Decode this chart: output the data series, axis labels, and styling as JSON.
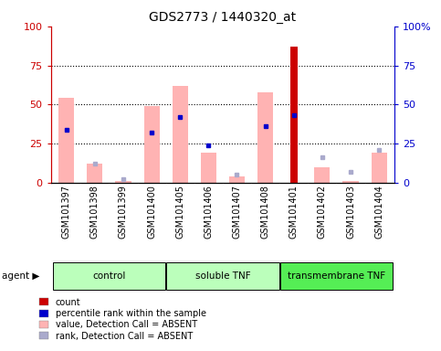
{
  "title": "GDS2773 / 1440320_at",
  "samples": [
    "GSM101397",
    "GSM101398",
    "GSM101399",
    "GSM101400",
    "GSM101405",
    "GSM101406",
    "GSM101407",
    "GSM101408",
    "GSM101401",
    "GSM101402",
    "GSM101403",
    "GSM101404"
  ],
  "pink_bar_values": [
    54,
    12,
    1,
    49,
    62,
    19,
    4,
    58,
    0,
    10,
    1,
    19
  ],
  "red_bar_values": [
    0,
    0,
    0,
    0,
    0,
    0,
    0,
    0,
    87,
    0,
    0,
    0
  ],
  "blue_dot_values": [
    34,
    0,
    0,
    32,
    42,
    24,
    0,
    36,
    43,
    0,
    0,
    0
  ],
  "purple_dot_values": [
    0,
    12,
    2,
    0,
    0,
    0,
    5,
    0,
    0,
    16,
    7,
    21
  ],
  "ylim": [
    0,
    100
  ],
  "yticks": [
    0,
    25,
    50,
    75,
    100
  ],
  "ytick_labels_left": [
    "0",
    "25",
    "50",
    "75",
    "100"
  ],
  "ytick_labels_right": [
    "0",
    "25",
    "50",
    "75",
    "100%"
  ],
  "left_axis_color": "#cc0000",
  "right_axis_color": "#0000cc",
  "pink_color": "#ffb3b3",
  "red_color": "#cc0000",
  "blue_color": "#0000cc",
  "purple_color": "#aaaacc",
  "group_defs": [
    {
      "name": "control",
      "start": 0,
      "end": 3,
      "color": "#bbffbb"
    },
    {
      "name": "soluble TNF",
      "start": 4,
      "end": 7,
      "color": "#bbffbb"
    },
    {
      "name": "transmembrane TNF",
      "start": 8,
      "end": 11,
      "color": "#55ee55"
    }
  ],
  "legend_items": [
    {
      "label": "count",
      "color": "#cc0000"
    },
    {
      "label": "percentile rank within the sample",
      "color": "#0000cc"
    },
    {
      "label": "value, Detection Call = ABSENT",
      "color": "#ffb3b3"
    },
    {
      "label": "rank, Detection Call = ABSENT",
      "color": "#aaaacc"
    }
  ],
  "agent_label": "agent",
  "background_color": "#ffffff",
  "xtick_area_color": "#c8c8c8",
  "title_fontsize": 10,
  "tick_fontsize": 8,
  "label_fontsize": 7,
  "legend_fontsize": 7
}
